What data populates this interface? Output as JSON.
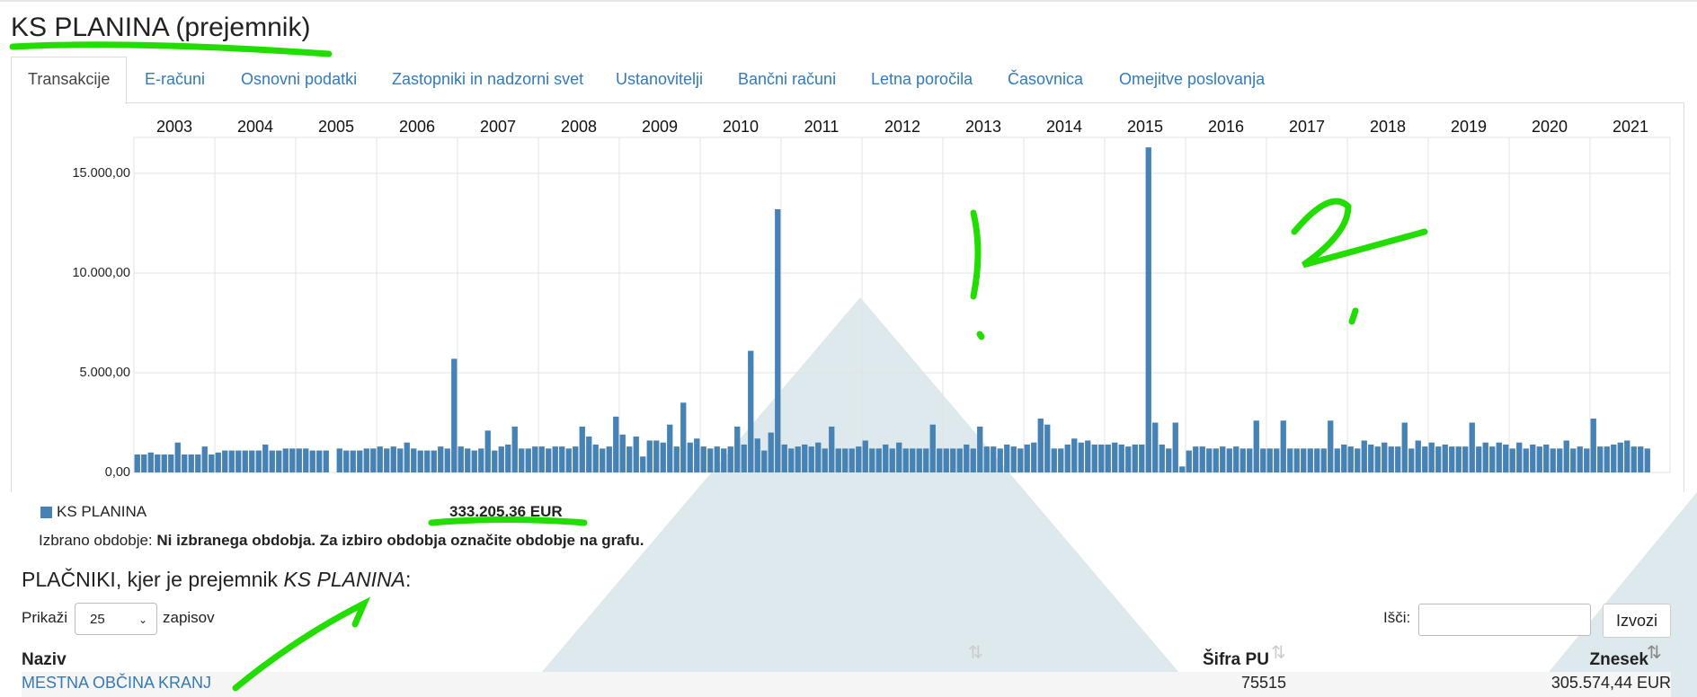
{
  "header": {
    "title": "KS PLANINA (prejemnik)"
  },
  "tabs": [
    "Transakcije",
    "E-računi",
    "Osnovni podatki",
    "Zastopniki in nadzorni svet",
    "Ustanovitelji",
    "Bančni računi",
    "Letna poročila",
    "Časovnica",
    "Omejitve poslovanja"
  ],
  "chart_data": {
    "type": "bar",
    "year_labels": [
      "2003",
      "2004",
      "2005",
      "2006",
      "2007",
      "2008",
      "2009",
      "2010",
      "2011",
      "2012",
      "2013",
      "2014",
      "2015",
      "2016",
      "2017",
      "2018",
      "2019",
      "2020",
      "2021"
    ],
    "values": [
      900,
      900,
      1000,
      900,
      900,
      900,
      1500,
      900,
      900,
      900,
      1300,
      900,
      1000,
      1100,
      1100,
      1100,
      1100,
      1100,
      1100,
      1400,
      1100,
      1100,
      1200,
      1200,
      1200,
      1200,
      1100,
      1100,
      1100,
      0,
      1200,
      1100,
      1100,
      1100,
      1200,
      1200,
      1300,
      1200,
      1300,
      1200,
      1500,
      1200,
      1100,
      1100,
      1100,
      1300,
      1200,
      5700,
      1300,
      1200,
      1100,
      1200,
      2100,
      1100,
      1300,
      1400,
      2300,
      1200,
      1200,
      1300,
      1300,
      1200,
      1300,
      1300,
      1200,
      1300,
      2300,
      1800,
      1400,
      1200,
      1300,
      2800,
      1900,
      1300,
      1800,
      800,
      1600,
      1600,
      1500,
      2400,
      1300,
      3500,
      1500,
      1700,
      1300,
      1200,
      1300,
      1200,
      1300,
      2300,
      1400,
      6100,
      1700,
      1100,
      2000,
      13200,
      1400,
      1200,
      1300,
      1400,
      1300,
      1500,
      1200,
      2300,
      1200,
      1200,
      1200,
      1300,
      1600,
      1200,
      1200,
      1400,
      1200,
      1500,
      1200,
      1200,
      1200,
      1200,
      2400,
      1200,
      1200,
      1200,
      1200,
      1400,
      1200,
      2300,
      1300,
      1300,
      1200,
      1400,
      1300,
      1200,
      1400,
      1500,
      2700,
      2400,
      1200,
      1200,
      1400,
      1700,
      1500,
      1600,
      1400,
      1400,
      1400,
      1500,
      1400,
      1300,
      1400,
      1400,
      16300,
      2500,
      1400,
      1200,
      2500,
      300,
      1100,
      1300,
      1300,
      1200,
      1200,
      1300,
      1200,
      1300,
      1200,
      1200,
      2600,
      1200,
      1200,
      1200,
      2600,
      1200,
      1200,
      1200,
      1200,
      1200,
      1200,
      2600,
      1200,
      1400,
      1300,
      1200,
      1600,
      1400,
      1300,
      1500,
      1300,
      1300,
      2500,
      1200,
      1600,
      1300,
      1500,
      1300,
      1400,
      1300,
      1300,
      1300,
      2500,
      1300,
      1500,
      1300,
      1500,
      1400,
      1200,
      1500,
      1200,
      1400,
      1300,
      1400,
      1200,
      1200,
      1600,
      1200,
      1300,
      1200,
      2700,
      1300,
      1300,
      1400,
      1500,
      1600,
      1300,
      1300,
      1200
    ],
    "color": "#4682b4",
    "ylim": [
      0,
      16800
    ],
    "yticks": [
      {
        "value": 0,
        "label": "0,00"
      },
      {
        "value": 5000,
        "label": "5.000,00"
      },
      {
        "value": 10000,
        "label": "10.000,00"
      },
      {
        "value": 15000,
        "label": "15.000,00"
      }
    ],
    "grid": true,
    "legend": {
      "name": "KS PLANINA",
      "total": "333.205,36 EUR"
    }
  },
  "period": {
    "label": "Izbrano obdobje:",
    "value": "Ni izbranega obdobja. Za izbiro obdobja označite obdobje na grafu."
  },
  "payers": {
    "title_prefix": "PLAČNIKI, kjer je prejemnik",
    "title_name": "KS PLANINA",
    "title_suffix": ":",
    "show_prefix": "Prikaži",
    "page_size": "25",
    "show_suffix": "zapisov",
    "search_label": "Išči:",
    "export": "Izvozi",
    "columns": [
      "Naziv",
      "Šifra PU",
      "Znesek"
    ],
    "rows": [
      [
        "MESTNA OBČINA KRANJ",
        "75515",
        "305.574,44 EUR"
      ]
    ]
  }
}
